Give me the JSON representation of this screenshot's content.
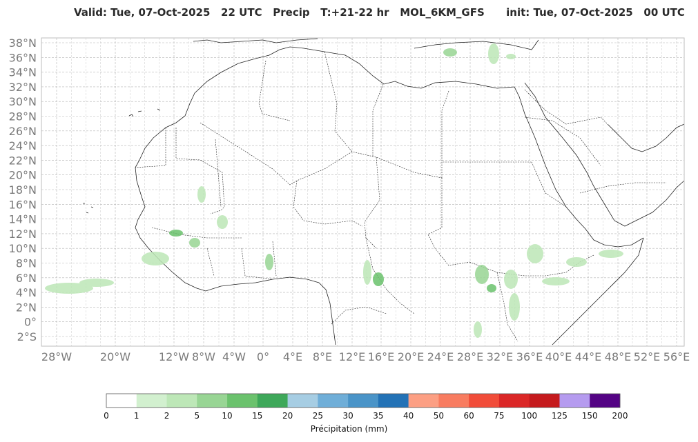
{
  "title": {
    "valid": "Valid: Tue, 07-Oct-2025   22 UTC",
    "field": "Precip",
    "timestep": "T:+21-22 hr",
    "model": "MOL_6KM_GFS",
    "init": "init: Tue, 07-Oct-2025   00 UTC"
  },
  "map": {
    "lat_labels": [
      "38°N",
      "36°N",
      "34°N",
      "32°N",
      "30°N",
      "28°N",
      "26°N",
      "24°N",
      "22°N",
      "20°N",
      "18°N",
      "16°N",
      "14°N",
      "12°N",
      "10°N",
      "8°N",
      "6°N",
      "4°N",
      "2°N",
      "0°",
      "2°S"
    ],
    "lon_labels": [
      "28°W",
      "20°W",
      "12°W",
      "8°W",
      "4°W",
      "0°",
      "4°E",
      "8°E",
      "12°E",
      "16°E",
      "20°E",
      "24°E",
      "28°E",
      "32°E",
      "36°E",
      "40°E",
      "44°E",
      "48°E",
      "52°E",
      "56°E"
    ],
    "grid": true
  },
  "colorbar": {
    "title": "Précipitation (mm)",
    "ticks": [
      "0",
      "1",
      "2",
      "5",
      "10",
      "15",
      "20",
      "25",
      "30",
      "35",
      "40",
      "50",
      "60",
      "75",
      "100",
      "125",
      "150",
      "200"
    ],
    "colors": [
      "#ffffff",
      "#d2f0cf",
      "#bde7b7",
      "#98d594",
      "#6bc26d",
      "#3ea85a",
      "#a6cde3",
      "#6faed8",
      "#4a94c8",
      "#2372b6",
      "#fc9f83",
      "#f87c60",
      "#f14c39",
      "#db2727",
      "#c51a1d",
      "#b59bef",
      "#540384"
    ]
  }
}
